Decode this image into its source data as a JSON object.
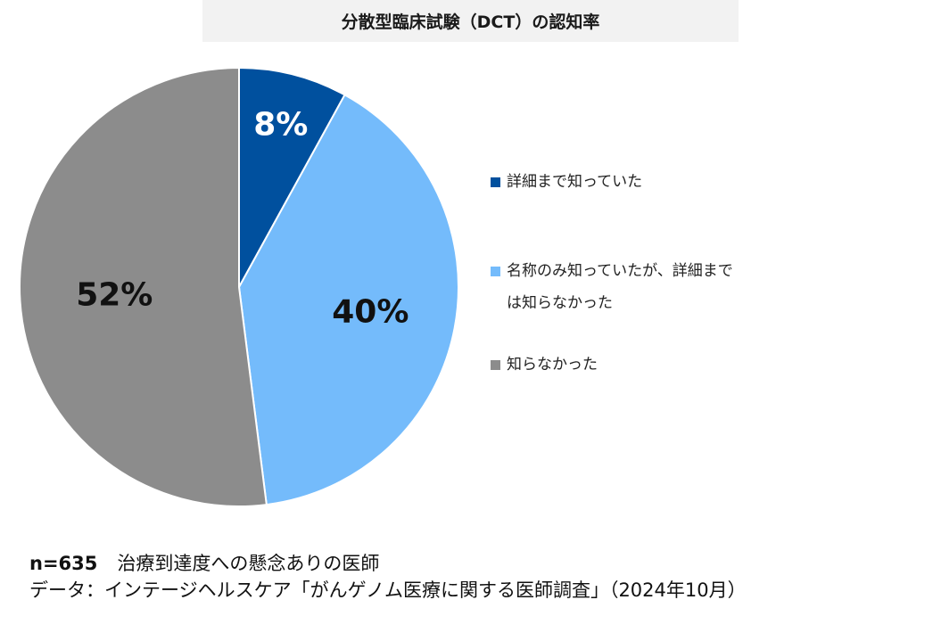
{
  "chart_data": {
    "type": "pie",
    "title": "分散型臨床試験（DCT）の認知率",
    "categories": [
      "詳細まで知っていた",
      "名称のみ知っていたが、詳細までは知らなかった",
      "知らなかった"
    ],
    "values": [
      8,
      40,
      52
    ],
    "value_labels": [
      "8%",
      "40%",
      "52%"
    ],
    "colors": [
      "#00509e",
      "#74bbfb",
      "#8c8c8c"
    ],
    "label_colors": [
      "#ffffff",
      "#111111",
      "#111111"
    ],
    "legend": "right",
    "start_angle": "top",
    "direction": "clockwise"
  },
  "footer": {
    "sample": "n=635",
    "sample_desc": "治療到達度への懸念ありの医師",
    "source": "データ：インテージヘルスケア「がんゲノム医療に関する医師調査」（2024年10月）"
  }
}
